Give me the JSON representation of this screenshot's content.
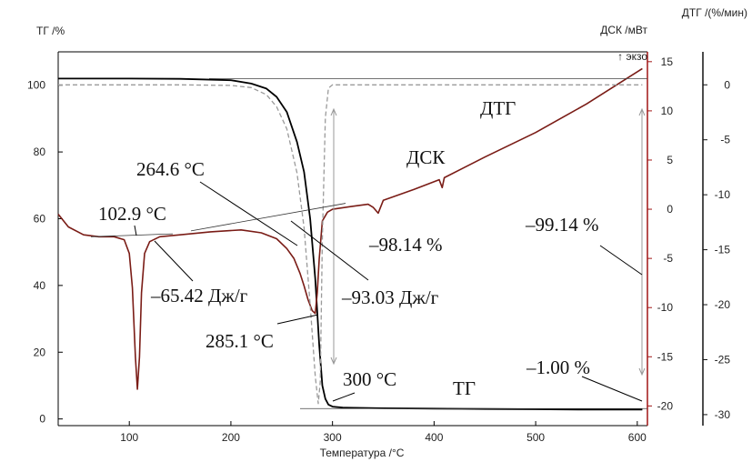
{
  "chart_data": {
    "type": "line",
    "title": "",
    "xlabel": "Температура /°С",
    "ylabel_left": "ТГ /%",
    "ylabel_right_1": "ДСК /мВт",
    "ylabel_right_1_note": "↑ экзо",
    "ylabel_right_2": "ДТГ /(%/мин)",
    "xlim": [
      30,
      610
    ],
    "ylim_tg": [
      -2,
      110
    ],
    "ylim_dsc": [
      -22,
      16
    ],
    "ylim_dtg": [
      -31,
      3
    ],
    "x_ticks": [
      100,
      200,
      300,
      400,
      500,
      600
    ],
    "tg_ticks": [
      0,
      20,
      40,
      60,
      80,
      100
    ],
    "dsc_ticks": [
      -20,
      -15,
      -10,
      -5,
      0,
      5,
      10,
      15
    ],
    "dtg_ticks": [
      -30,
      -25,
      -20,
      -15,
      -10,
      -5,
      0
    ],
    "grid": false,
    "series": [
      {
        "name": "ТГ",
        "axis": "tg",
        "x": [
          30,
          100,
          150,
          200,
          220,
          235,
          245,
          255,
          265,
          272,
          278,
          283,
          287,
          290,
          293,
          296,
          300,
          310,
          350,
          400,
          450,
          500,
          550,
          605
        ],
        "y": [
          102,
          102,
          101.9,
          101.5,
          100.5,
          99,
          96.5,
          92,
          83,
          74,
          60,
          42,
          22,
          10,
          6,
          4.3,
          3.7,
          3.4,
          3.2,
          3.1,
          3.0,
          2.9,
          2.8,
          2.8
        ]
      },
      {
        "name": "ДСК",
        "axis": "dsc",
        "x": [
          30,
          40,
          55,
          70,
          85,
          95,
          100,
          103,
          106,
          108,
          110,
          112,
          115,
          120,
          130,
          150,
          180,
          210,
          230,
          245,
          255,
          262,
          268,
          272,
          276,
          280,
          283,
          285,
          287,
          290,
          295,
          300,
          320,
          335,
          340,
          345,
          350,
          380,
          405,
          408,
          410,
          450,
          500,
          550,
          605
        ],
        "y": [
          -0.5,
          -1.8,
          -2.6,
          -2.8,
          -2.8,
          -3.1,
          -4.5,
          -8.0,
          -15.0,
          -18.3,
          -15.0,
          -8.5,
          -4.5,
          -3.3,
          -2.8,
          -2.6,
          -2.3,
          -2.1,
          -2.4,
          -3.0,
          -4.0,
          -5.0,
          -6.5,
          -7.8,
          -9.2,
          -10.3,
          -10.6,
          -8.5,
          -5.0,
          -1.2,
          -0.3,
          0.0,
          0.3,
          0.5,
          0.2,
          -0.4,
          0.9,
          2.0,
          3.0,
          2.2,
          3.2,
          5.3,
          7.8,
          10.7,
          14.3
        ]
      },
      {
        "name": "ДТГ",
        "axis": "dtg",
        "x": [
          30,
          150,
          200,
          220,
          235,
          245,
          255,
          265,
          272,
          278,
          283,
          286,
          288,
          290,
          293,
          296,
          300,
          320,
          350,
          400,
          500,
          605
        ],
        "y": [
          0.0,
          0.0,
          -0.05,
          -0.25,
          -0.9,
          -2.0,
          -4.0,
          -8.0,
          -13.0,
          -20.0,
          -26.5,
          -29.0,
          -27.0,
          -14.0,
          -3.0,
          -0.3,
          0.0,
          0.0,
          0.0,
          0.0,
          0.0,
          0.0
        ]
      }
    ],
    "annotations": [
      {
        "text": "102.9 °C"
      },
      {
        "text": "264.6 °C"
      },
      {
        "text": "ДСК"
      },
      {
        "text": "ДТГ"
      },
      {
        "text": "–99.14 %"
      },
      {
        "text": "–98.14 %"
      },
      {
        "text": "–65.42 Дж/г"
      },
      {
        "text": "–93.03 Дж/г"
      },
      {
        "text": "285.1 °C"
      },
      {
        "text": "300 °C"
      },
      {
        "text": "ТГ"
      },
      {
        "text": "–1.00 %"
      }
    ],
    "colors": {
      "tg": "#000000",
      "dsc": "#7a1c16",
      "dtg": "#9a9a9a",
      "axis_left": "#000000",
      "axis_dsc": "#a01515",
      "axis_dtg": "#111111"
    }
  }
}
